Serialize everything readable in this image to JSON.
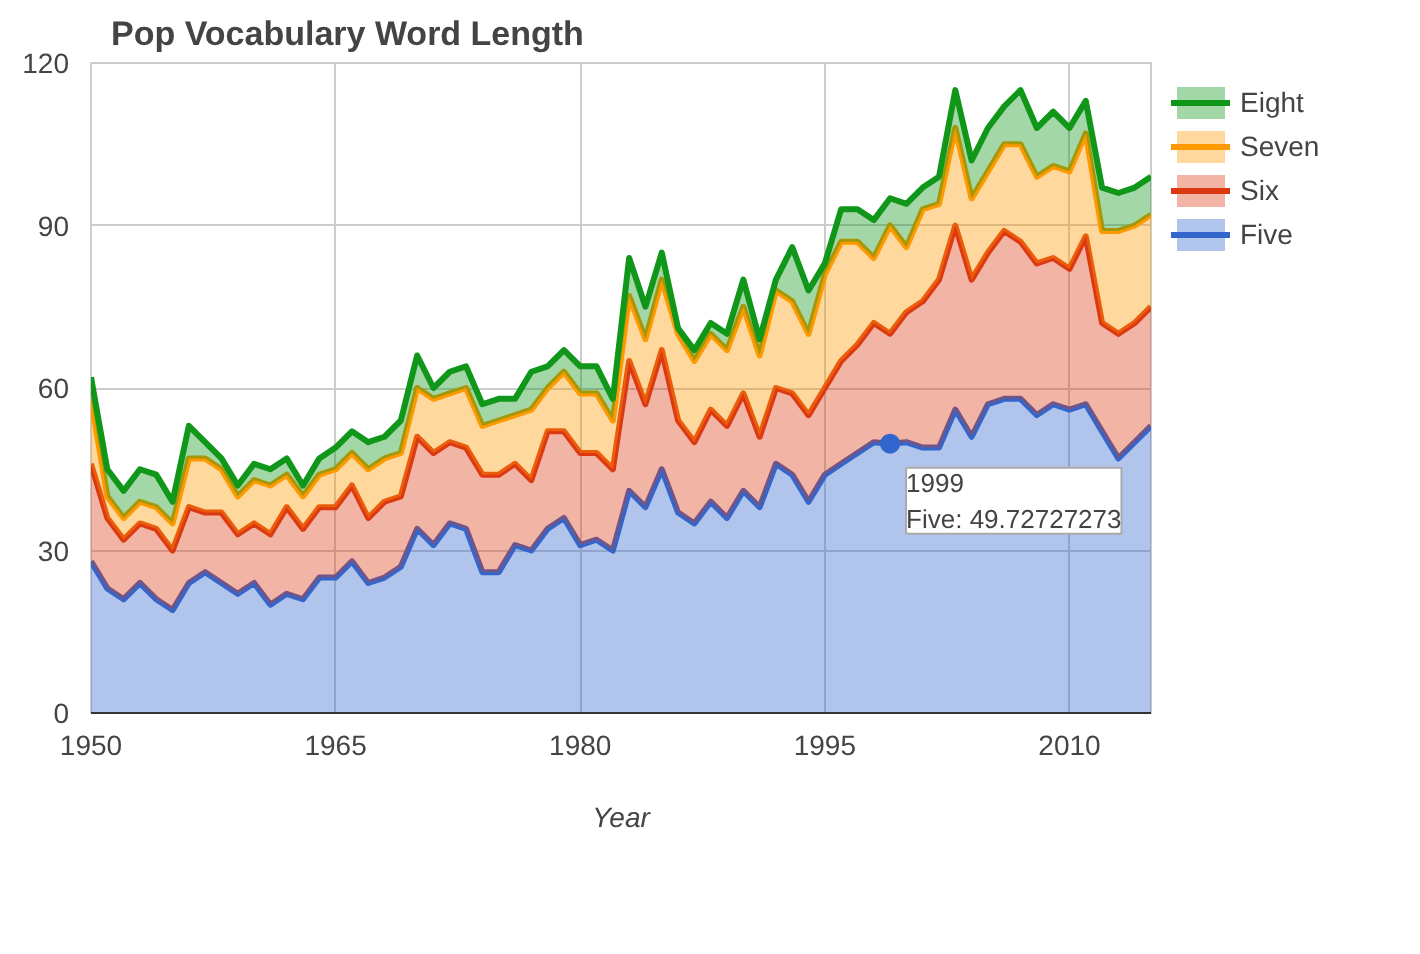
{
  "chart_data": {
    "type": "area",
    "stacked": true,
    "title": "Pop Vocabulary Word Length",
    "xlabel": "Year",
    "x": [
      1950,
      1951,
      1952,
      1953,
      1954,
      1955,
      1956,
      1957,
      1958,
      1959,
      1960,
      1961,
      1962,
      1963,
      1964,
      1965,
      1966,
      1967,
      1968,
      1969,
      1970,
      1971,
      1972,
      1973,
      1974,
      1975,
      1976,
      1977,
      1978,
      1979,
      1980,
      1981,
      1982,
      1983,
      1984,
      1985,
      1986,
      1987,
      1988,
      1989,
      1990,
      1991,
      1992,
      1993,
      1994,
      1995,
      1996,
      1997,
      1998,
      1999,
      2000,
      2001,
      2002,
      2003,
      2004,
      2005,
      2006,
      2007,
      2008,
      2009,
      2010,
      2011,
      2012,
      2013,
      2014,
      2015
    ],
    "series": [
      {
        "name": "Five",
        "color": "#3366cc",
        "values": [
          28,
          23,
          21,
          24,
          21,
          19,
          24,
          26,
          24,
          22,
          24,
          20,
          22,
          21,
          25,
          25,
          28,
          24,
          25,
          27,
          34,
          31,
          35,
          34,
          26,
          26,
          31,
          30,
          34,
          36,
          31,
          32,
          30,
          41,
          38,
          45,
          37,
          35,
          39,
          36,
          41,
          38,
          46,
          44,
          39,
          44,
          46,
          48,
          50,
          49.72727273,
          50,
          49,
          49,
          56,
          51,
          57,
          58,
          58,
          55,
          57,
          56,
          57,
          52,
          47,
          50,
          53
        ]
      },
      {
        "name": "Six",
        "color": "#dc3912",
        "values": [
          18,
          13,
          11,
          11,
          13,
          11,
          14,
          11,
          13,
          11,
          11,
          13,
          16,
          13,
          13,
          13,
          14,
          12,
          14,
          13,
          17,
          17,
          15,
          15,
          18,
          18,
          15,
          13,
          18,
          16,
          17,
          16,
          15,
          24,
          19,
          22,
          17,
          15,
          17,
          17,
          18,
          13,
          14,
          15,
          16,
          16,
          19,
          20,
          22,
          20.3,
          24,
          27,
          31,
          34,
          29,
          28,
          31,
          29,
          28,
          27,
          26,
          31,
          20,
          23,
          22,
          22
        ]
      },
      {
        "name": "Seven",
        "color": "#ff9900",
        "values": [
          12,
          4,
          4,
          4,
          4,
          5,
          9,
          10,
          8,
          7,
          8,
          9,
          6,
          6,
          6,
          7,
          6,
          9,
          8,
          8,
          9,
          10,
          9,
          11,
          9,
          10,
          9,
          13,
          8,
          11,
          11,
          11,
          9,
          12,
          12,
          13,
          16,
          15,
          14,
          14,
          16,
          15,
          18,
          17,
          15,
          21,
          22,
          19,
          12,
          20,
          12,
          17,
          14,
          18,
          15,
          15,
          16,
          18,
          16,
          17,
          18,
          19,
          17,
          19,
          18,
          17
        ]
      },
      {
        "name": "Eight",
        "color": "#109618",
        "values": [
          4,
          5,
          5,
          6,
          6,
          4,
          6,
          3,
          2,
          2,
          3,
          3,
          3,
          2,
          3,
          4,
          4,
          5,
          4,
          6,
          6,
          2,
          4,
          4,
          4,
          4,
          3,
          7,
          4,
          4,
          5,
          5,
          4,
          7,
          6,
          5,
          1,
          2,
          2,
          3,
          5,
          3,
          2,
          10,
          8,
          2,
          6,
          6,
          7,
          5,
          8,
          4,
          5,
          7,
          7,
          8,
          7,
          10,
          9,
          10,
          8,
          6,
          8,
          7,
          7,
          7
        ]
      }
    ],
    "xlim": [
      1950,
      2015
    ],
    "xticks": [
      1950,
      1965,
      1980,
      1995,
      2010
    ],
    "ylim": [
      0,
      120
    ],
    "yticks": [
      0,
      30,
      60,
      90,
      120
    ],
    "grid": true,
    "legend": "right",
    "annotations": [
      {
        "text": "1999\nFive: 49.72727273",
        "x": 1999,
        "y": 49.72727273
      }
    ]
  }
}
